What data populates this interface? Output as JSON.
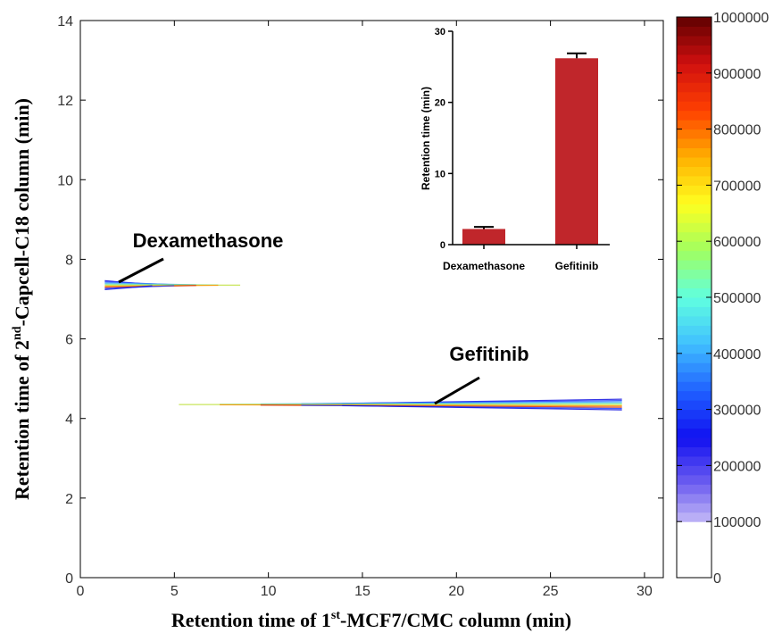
{
  "colors": {
    "inset_bar": "#c0262b",
    "axis": "#000000",
    "colormap": [
      "#ffffff",
      "#d8d0f8",
      "#7060f0",
      "#1010f0",
      "#2060ff",
      "#40c0ff",
      "#60ffe0",
      "#a0ff60",
      "#ffff20",
      "#ffb000",
      "#ff4000",
      "#d01010",
      "#600000"
    ]
  },
  "chart_data": [
    {
      "type": "heatmap",
      "xlabel_prefix": "Retention time of 1",
      "xlabel_sup": "st",
      "xlabel_suffix": "-MCF7/CMC column (min)",
      "ylabel_prefix": "Retention time of 2",
      "ylabel_sup": "nd",
      "ylabel_suffix": "-Capcell-C18 column (min)",
      "xlim": [
        0,
        31
      ],
      "ylim": [
        0,
        14
      ],
      "xticks": [
        0,
        5,
        10,
        15,
        20,
        25,
        30
      ],
      "yticks": [
        0,
        2,
        4,
        6,
        8,
        10,
        12,
        14
      ],
      "peaks": [
        {
          "name": "Dexamethasone",
          "x_start": 1.3,
          "x_end": 8.5,
          "y": 7.35
        },
        {
          "name": "Gefitinib",
          "x_start": 4.0,
          "x_end": 28.8,
          "y": 4.35
        }
      ],
      "annotations": [
        {
          "text": "Dexamethasone",
          "x": 2.0,
          "y": 7.4
        },
        {
          "text": "Gefitinib",
          "x": 18.8,
          "y": 4.35
        }
      ],
      "colorbar": {
        "min": 0,
        "max": 1000000,
        "ticks": [
          0,
          100000,
          200000,
          300000,
          400000,
          500000,
          600000,
          700000,
          800000,
          900000,
          1000000
        ],
        "tick_labels": [
          "0",
          "100000",
          "200000",
          "300000",
          "400000",
          "500000",
          "600000",
          "700000",
          "800000",
          "900000",
          "1000000"
        ]
      }
    },
    {
      "type": "bar",
      "categories": [
        "Dexamethasone",
        "Gefitinib"
      ],
      "values": [
        2.2,
        26.2
      ],
      "errors": [
        0.3,
        0.7
      ],
      "ylabel": "Retention time (min)",
      "ylim": [
        0,
        30
      ],
      "yticks": [
        0,
        10,
        20,
        30
      ]
    }
  ]
}
